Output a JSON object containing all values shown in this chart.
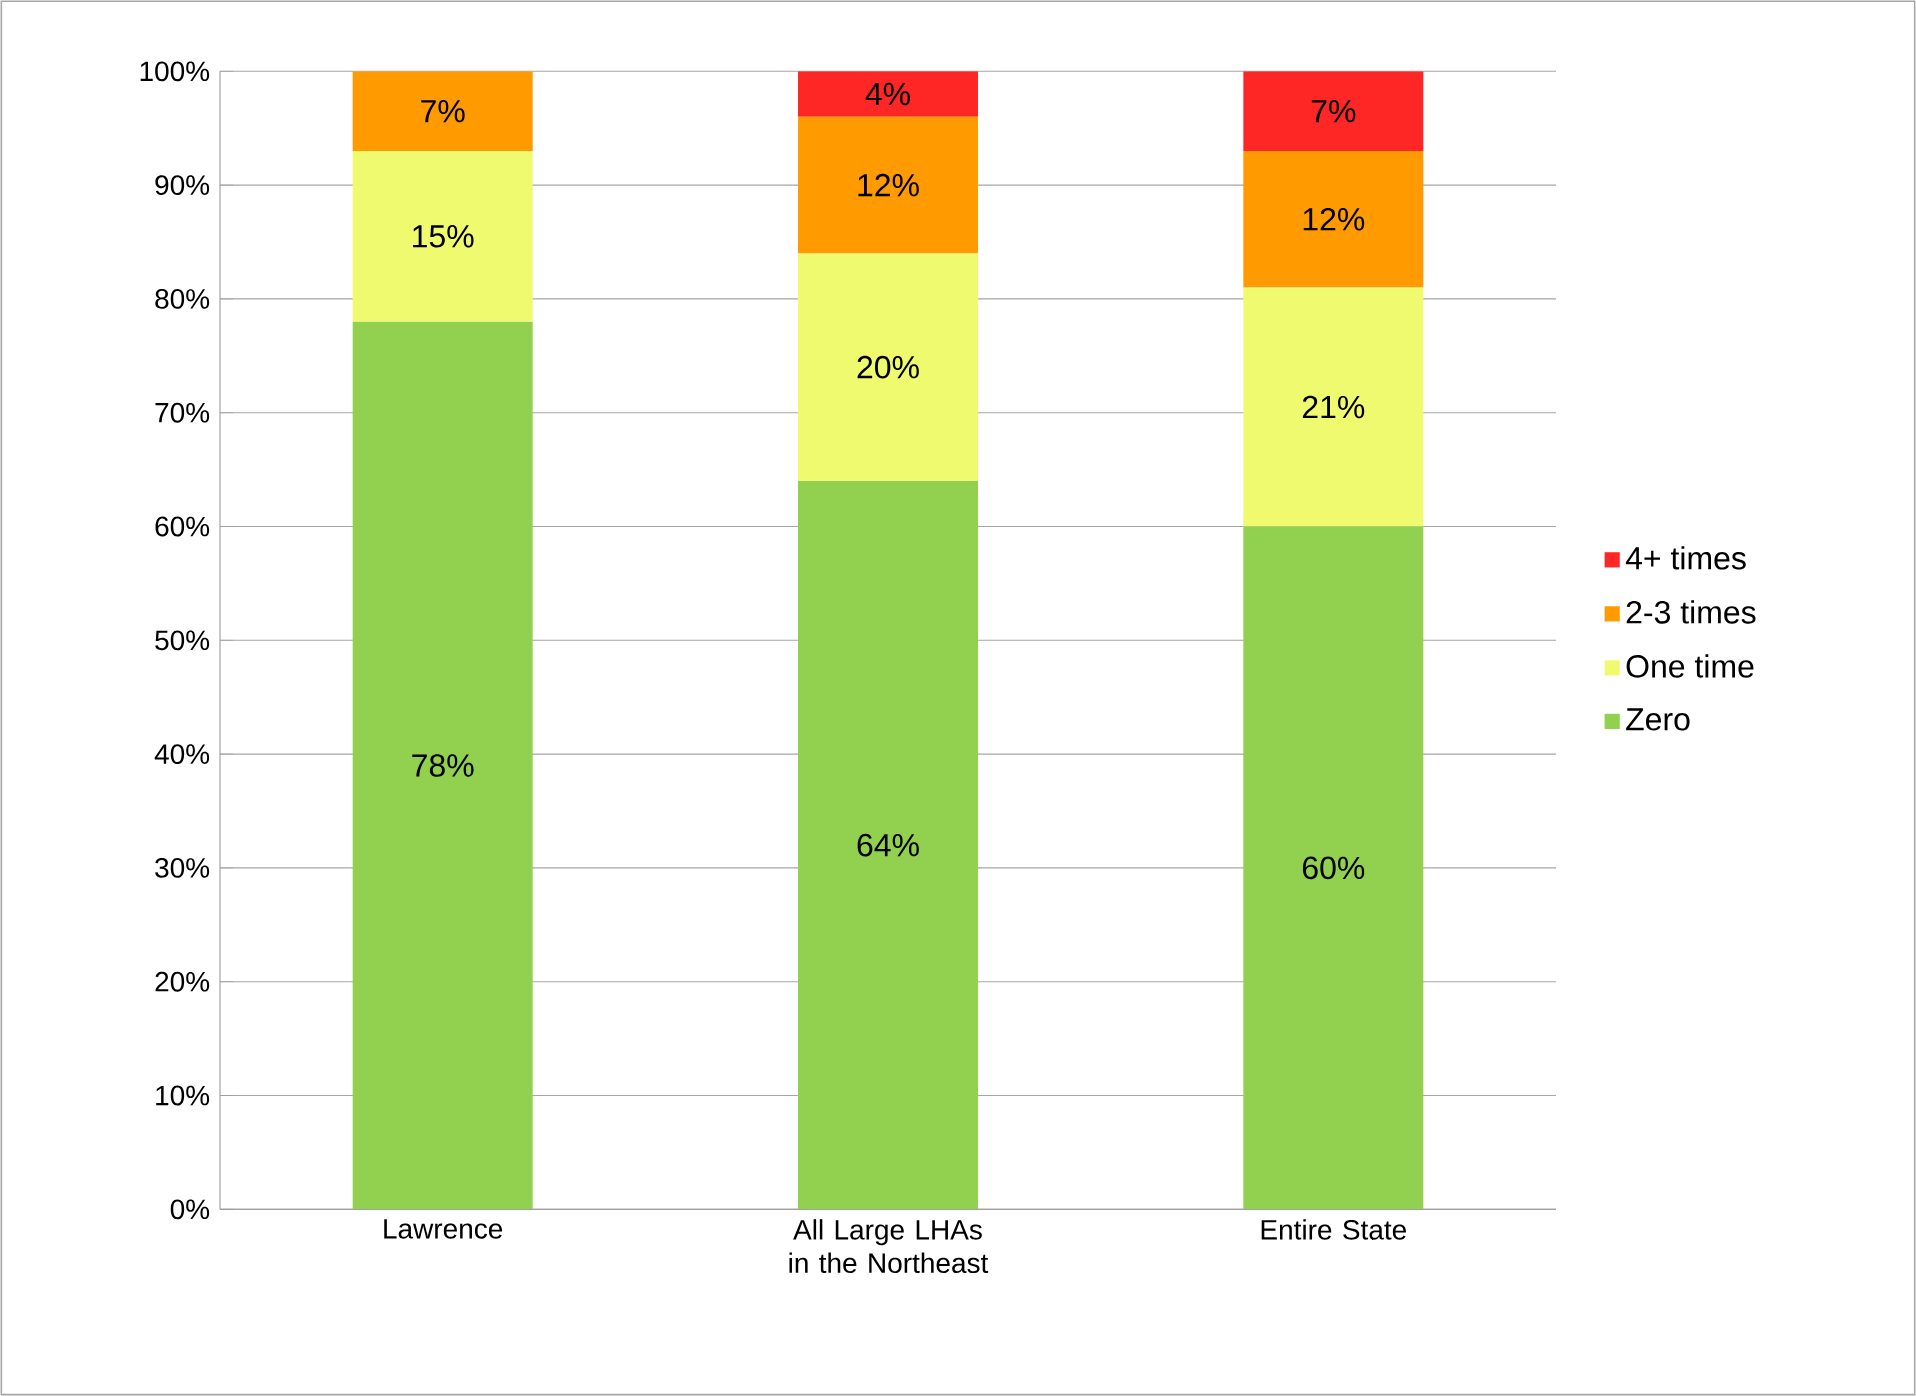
{
  "chart_data": {
    "type": "bar",
    "stacked": true,
    "categories": [
      "Lawrence",
      "All Large LHAs in the Northeast",
      "Entire State"
    ],
    "series": [
      {
        "name": "Zero",
        "color": "#92d050",
        "values": [
          78,
          64,
          60
        ],
        "value_labels": [
          "78%",
          "64%",
          "60%"
        ]
      },
      {
        "name": "One time",
        "color": "#f0fa6e",
        "values": [
          15,
          20,
          21
        ],
        "value_labels": [
          "15%",
          "20%",
          "21%"
        ]
      },
      {
        "name": "2-3 times",
        "color": "#ff9a00",
        "values": [
          7,
          12,
          12
        ],
        "value_labels": [
          "7%",
          "12%",
          "12%"
        ]
      },
      {
        "name": "4+ times",
        "color": "#ff2626",
        "values": [
          0,
          4,
          7
        ],
        "value_labels": [
          null,
          "4%",
          "7%"
        ]
      }
    ],
    "ylim": [
      0,
      100
    ],
    "yticks": [
      {
        "value": 0,
        "label": "0%"
      },
      {
        "value": 10,
        "label": "10%"
      },
      {
        "value": 20,
        "label": "20%"
      },
      {
        "value": 30,
        "label": "30%"
      },
      {
        "value": 40,
        "label": "40%"
      },
      {
        "value": 50,
        "label": "50%"
      },
      {
        "value": 60,
        "label": "60%"
      },
      {
        "value": 70,
        "label": "70%"
      },
      {
        "value": 80,
        "label": "80%"
      },
      {
        "value": 90,
        "label": "90%"
      },
      {
        "value": 100,
        "label": "100%"
      }
    ],
    "grid": "y",
    "legend": "right"
  }
}
